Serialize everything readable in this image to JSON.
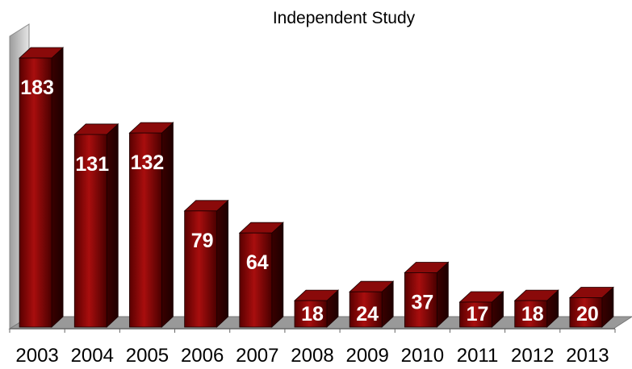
{
  "chart_data": {
    "type": "bar",
    "title": "Independent Study",
    "categories": [
      "2003",
      "2004",
      "2005",
      "2006",
      "2007",
      "2008",
      "2009",
      "2010",
      "2011",
      "2012",
      "2013"
    ],
    "values": [
      183,
      131,
      132,
      79,
      64,
      18,
      24,
      37,
      17,
      18,
      20
    ],
    "ylim": [
      0,
      200
    ],
    "grid": false,
    "legend": "none",
    "style": "3d-columns",
    "colors": {
      "bar_front": "#7a0000",
      "bar_front_light": "#b01010",
      "bar_side": "#3a0000",
      "bar_top": "#8a0a0a",
      "wall": "#f2f2f2",
      "floor": "#9a9a9a",
      "label_text": "#ffffff"
    }
  }
}
